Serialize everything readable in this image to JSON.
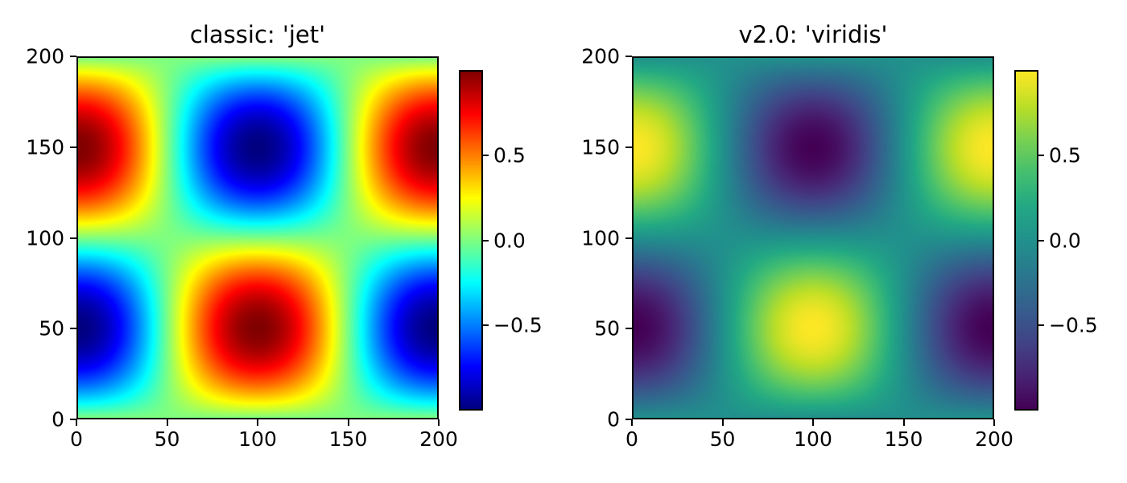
{
  "page": {
    "background": "#ffffff"
  },
  "chart_data": {
    "type": "heatmap",
    "description": "Side-by-side comparison of the same 2D sinusoidal field rendered with the classic 'jet' colormap and the matplotlib v2.0 default 'viridis' colormap, each with a vertical colorbar.",
    "x_range": [
      0,
      200
    ],
    "y_range": [
      0,
      200
    ],
    "value_range": [
      -1,
      1
    ],
    "z_formula": "z = -cos(2*pi*x/200) * sin(2*pi*y/200)",
    "grid": false,
    "panels": [
      {
        "title": "classic: 'jet'",
        "colormap": "jet",
        "x_ticks": [
          0,
          50,
          100,
          150,
          200
        ],
        "x_tick_labels": [
          "0",
          "50",
          "100",
          "150",
          "200"
        ],
        "y_ticks": [
          0,
          50,
          100,
          150,
          200
        ],
        "y_tick_labels": [
          "0",
          "50",
          "100",
          "150",
          "200"
        ],
        "colorbar_ticks": [
          {
            "value": 0.5,
            "label": "0.5"
          },
          {
            "value": 0,
            "label": "0.0"
          },
          {
            "value": -0.5,
            "label": "−0.5"
          }
        ]
      },
      {
        "title": "v2.0: 'viridis'",
        "colormap": "viridis",
        "x_ticks": [
          0,
          50,
          100,
          150,
          200
        ],
        "x_tick_labels": [
          "0",
          "50",
          "100",
          "150",
          "200"
        ],
        "y_ticks": [
          0,
          50,
          100,
          150,
          200
        ],
        "y_tick_labels": [
          "0",
          "50",
          "100",
          "150",
          "200"
        ],
        "colorbar_ticks": [
          {
            "value": 0.5,
            "label": "0.5"
          },
          {
            "value": 0,
            "label": "0.0"
          },
          {
            "value": -0.5,
            "label": "−0.5"
          }
        ]
      }
    ],
    "colormaps": {
      "jet": [
        [
          0.0,
          "#000080"
        ],
        [
          0.125,
          "#0000ff"
        ],
        [
          0.375,
          "#00ffff"
        ],
        [
          0.625,
          "#ffff00"
        ],
        [
          0.875,
          "#ff0000"
        ],
        [
          1.0,
          "#800000"
        ]
      ],
      "viridis": [
        [
          0.0,
          "#440154"
        ],
        [
          0.1,
          "#482475"
        ],
        [
          0.2,
          "#414487"
        ],
        [
          0.3,
          "#355f8d"
        ],
        [
          0.4,
          "#2a788e"
        ],
        [
          0.5,
          "#21918c"
        ],
        [
          0.6,
          "#22a884"
        ],
        [
          0.7,
          "#44bf70"
        ],
        [
          0.8,
          "#7ad151"
        ],
        [
          0.9,
          "#bddf26"
        ],
        [
          1.0,
          "#fde725"
        ]
      ]
    }
  }
}
